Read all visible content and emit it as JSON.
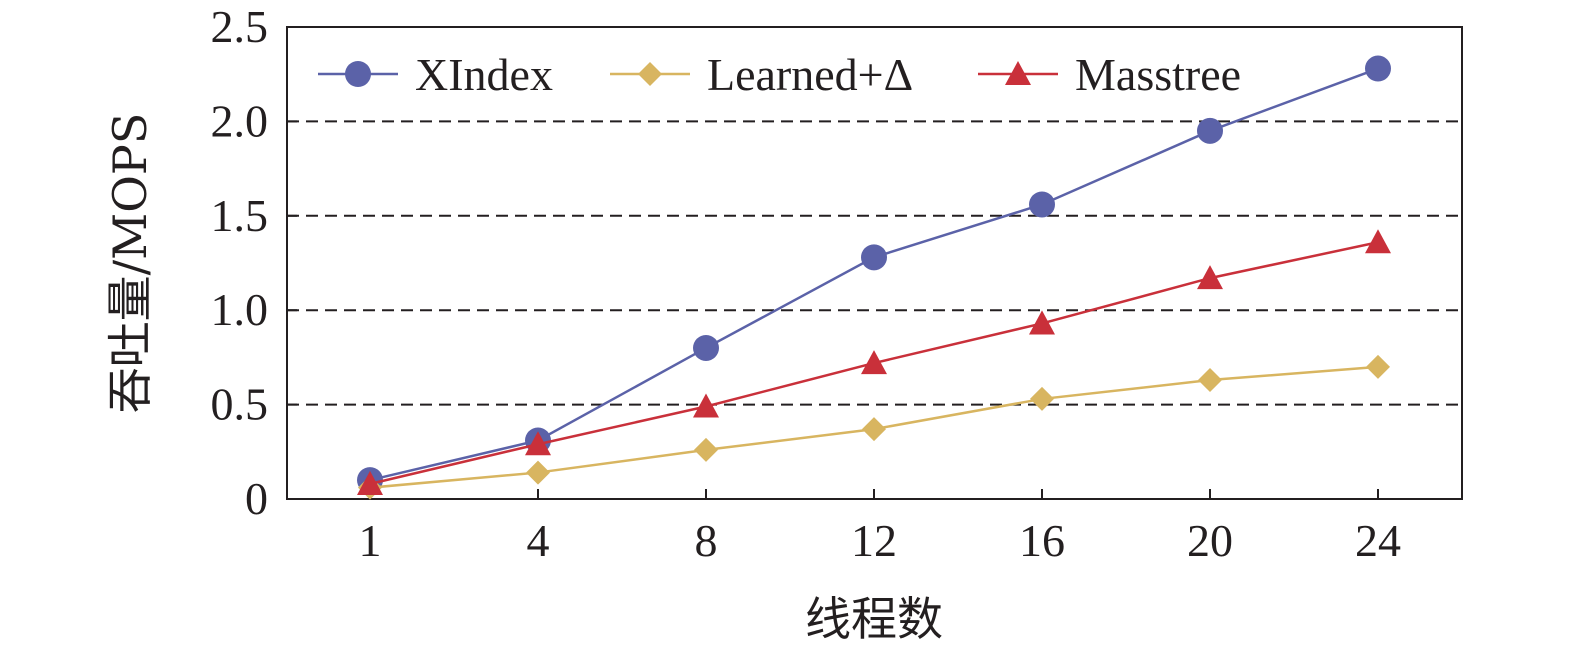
{
  "chart_data": {
    "type": "line",
    "xlabel": "线程数",
    "ylabel": "吞吐量/MOPS",
    "categories": [
      "1",
      "4",
      "8",
      "12",
      "16",
      "20",
      "24"
    ],
    "yticks": [
      "0",
      "0.5",
      "1.0",
      "1.5",
      "2.0",
      "2.5"
    ],
    "ylim": [
      0,
      2.5
    ],
    "grid": "horizontal dashed",
    "legend_position": "top",
    "series": [
      {
        "name": "XIndex",
        "color": "#5b62a8",
        "marker": "circle",
        "values": [
          0.1,
          0.31,
          0.8,
          1.28,
          1.56,
          1.95,
          2.28
        ]
      },
      {
        "name": "Learned+Δ",
        "color": "#d8b560",
        "marker": "diamond",
        "values": [
          0.06,
          0.14,
          0.26,
          0.37,
          0.53,
          0.63,
          0.7
        ]
      },
      {
        "name": "Masstree",
        "color": "#c9303a",
        "marker": "triangle",
        "values": [
          0.08,
          0.29,
          0.49,
          0.72,
          0.93,
          1.17,
          1.36
        ]
      }
    ]
  }
}
